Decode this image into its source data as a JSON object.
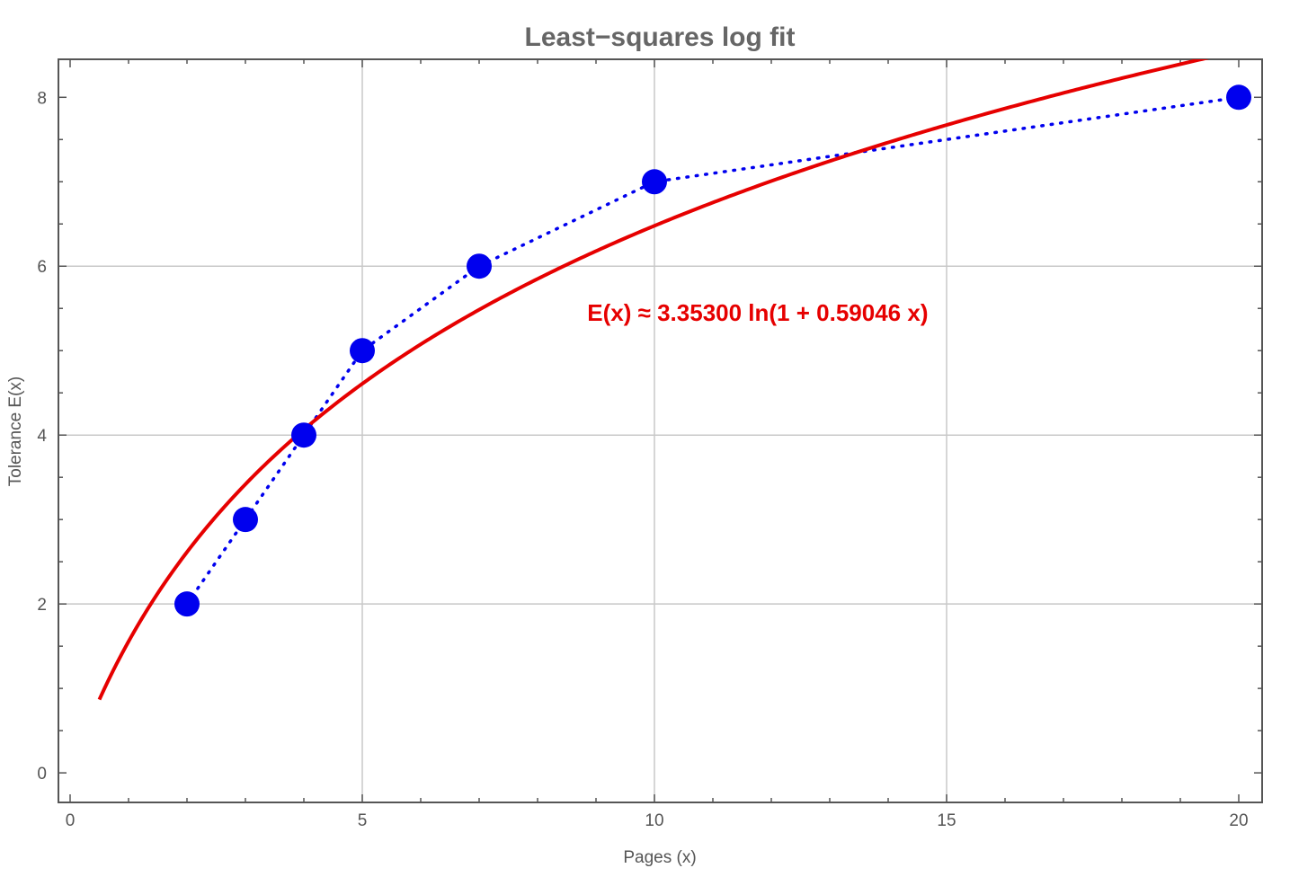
{
  "chart_data": {
    "type": "scatter",
    "title": "Least−squares log fit",
    "xlabel": "Pages (x)",
    "ylabel": "Tolerance  E(x)",
    "xlim": [
      -0.2,
      20.4
    ],
    "ylim": [
      -0.35,
      8.45
    ],
    "x_ticks": [
      0,
      5,
      10,
      15,
      20
    ],
    "y_ticks": [
      0,
      2,
      4,
      6,
      8
    ],
    "x_grid": [
      5,
      10,
      15
    ],
    "y_grid": [
      2,
      4,
      6
    ],
    "series": [
      {
        "style": "points-dotted",
        "color": "#0000ee",
        "x": [
          2,
          3,
          4,
          5,
          7,
          10,
          20
        ],
        "y": [
          2,
          3,
          4,
          5,
          6,
          7,
          8
        ]
      },
      {
        "style": "line",
        "color": "#e60000",
        "function": "3.35300*ln(1+0.59046*x)",
        "a": 3.353,
        "b": 0.59046,
        "x_range": [
          0.5,
          20
        ]
      }
    ],
    "annotation": {
      "text": "E(x) ≈ 3.35300 ln(1 + 0.59046 x)",
      "x": 8.85,
      "y": 5.45,
      "color": "#e60000"
    }
  }
}
